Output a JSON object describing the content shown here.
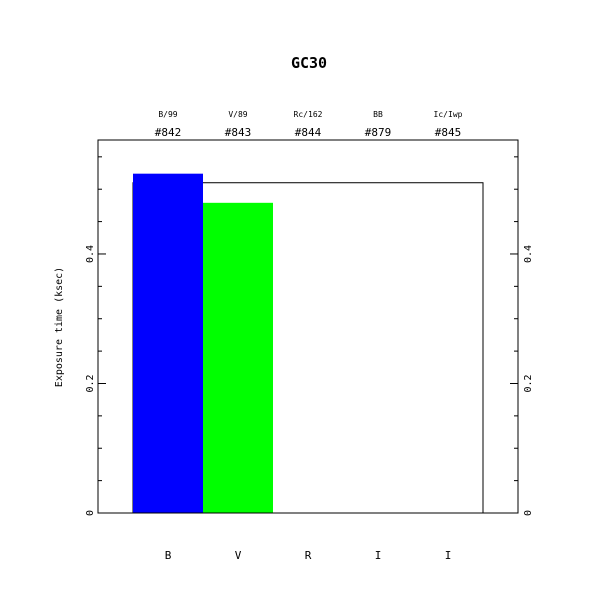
{
  "chart_data": {
    "type": "bar",
    "title": "GC30",
    "ylabel": "Exposure time (ksec)",
    "xlabel": "",
    "ylim": [
      0,
      0.576
    ],
    "yticks": [
      0,
      0.2,
      0.4
    ],
    "ytick_labels": [
      "0",
      "0.2",
      "0.4"
    ],
    "minor_tick_step": 0.05,
    "grid": false,
    "categories": [
      "B",
      "V",
      "R",
      "I",
      "I"
    ],
    "filters": [
      "B/99",
      "V/89",
      "Rc/162",
      "BB",
      "Ic/Iwp"
    ],
    "filter_ids": [
      "#842",
      "#843",
      "#844",
      "#879",
      "#845"
    ],
    "bars": [
      {
        "category_index": 0,
        "value": 0.524,
        "color": "#0000ff"
      },
      {
        "category_index": 1,
        "value": 0.479,
        "color": "#00ff00"
      }
    ],
    "outline_box": {
      "from_category": 0,
      "to_category": 4,
      "value": 0.51,
      "color": "#000000"
    }
  }
}
